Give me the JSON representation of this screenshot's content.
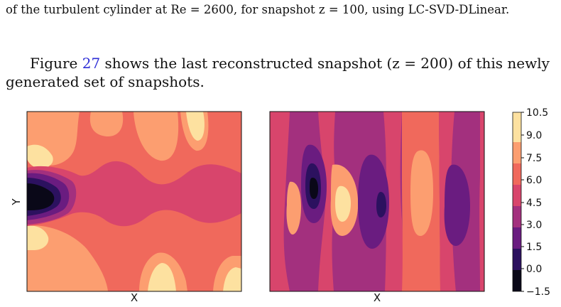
{
  "text": {
    "caption_tail": "of the turbulent cylinder at Re = 2600, for snapshot z = 100, using LC-SVD-DLinear.",
    "para_before": "Figure ",
    "fig_ref": "27",
    "para_after": " shows the last reconstructed snapshot (z = 200) of this newly generated set of snapshots."
  },
  "plots": {
    "left": {
      "xlabel": "X",
      "ylabel": "Y"
    },
    "right": {
      "xlabel": "X"
    }
  },
  "colorbar": {
    "ticks": [
      "10.5",
      "9.0",
      "7.5",
      "6.0",
      "4.5",
      "3.0",
      "1.5",
      "0.0",
      "−1.5"
    ],
    "colors": {
      "lvl0": "#0a0818",
      "lvl1": "#2c115f",
      "lvl2": "#6a1c80",
      "lvl3": "#a3307e",
      "lvl4": "#d8456c",
      "lvl5": "#f0695c",
      "lvl6": "#fc9e70",
      "lvl7": "#fde1a0"
    }
  }
}
